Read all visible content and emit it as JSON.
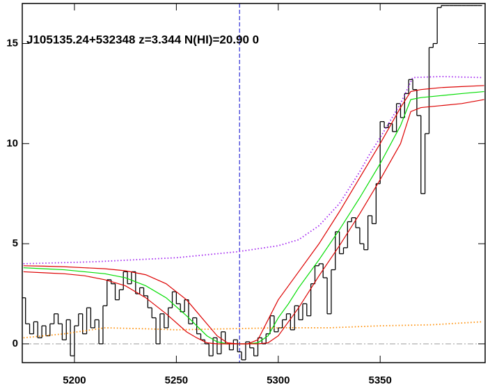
{
  "chart_data": {
    "type": "line",
    "title": "J105135.24+532348 z=3.344 N(HI)=20.90 0",
    "xlim": [
      5174.4,
      5401.5
    ],
    "ylim": [
      -0.94,
      17.0
    ],
    "xticks": [
      5200,
      5250,
      5300,
      5350
    ],
    "yticks": [
      0,
      5,
      10,
      15
    ],
    "vline": 5281,
    "vline_color": "#0000cc",
    "hline": 0,
    "hline_color": "#999999",
    "series": [
      {
        "style": "step",
        "color": "#000000",
        "x": [
          5175,
          5177,
          5179,
          5181,
          5183,
          5185,
          5187,
          5189,
          5191,
          5193,
          5195,
          5197,
          5199,
          5201,
          5203,
          5205,
          5207,
          5209,
          5211,
          5213,
          5215,
          5217,
          5219,
          5221,
          5223,
          5225,
          5227,
          5229,
          5231,
          5233,
          5235,
          5237,
          5239,
          5241,
          5243,
          5245,
          5247,
          5249,
          5251,
          5253,
          5255,
          5257,
          5259,
          5261,
          5263,
          5265,
          5267,
          5269,
          5271,
          5273,
          5275,
          5277,
          5279,
          5281,
          5283,
          5285,
          5287,
          5289,
          5291,
          5293,
          5295,
          5297,
          5299,
          5301,
          5303,
          5305,
          5307,
          5309,
          5311,
          5313,
          5315,
          5317,
          5319,
          5321,
          5323,
          5325,
          5327,
          5329,
          5331,
          5333,
          5335,
          5337,
          5339,
          5341,
          5343,
          5345,
          5347,
          5349,
          5351,
          5353,
          5355,
          5357,
          5359,
          5361,
          5363,
          5365,
          5367,
          5369,
          5371,
          5373,
          5375,
          5377,
          5379,
          5381,
          5383,
          5385,
          5387,
          5389,
          5391,
          5393,
          5395,
          5397,
          5399
        ],
        "values": [
          2.3,
          1.0,
          0.5,
          1.1,
          0.3,
          0.9,
          0.4,
          1.0,
          1.5,
          1.0,
          0.2,
          1.2,
          -0.6,
          0.9,
          1.5,
          0.5,
          1.8,
          0.8,
          1.2,
          0.0,
          1.9,
          3.2,
          3.0,
          2.2,
          2.7,
          3.6,
          3.0,
          3.6,
          2.5,
          2.8,
          2.4,
          1.8,
          1.3,
          0.0,
          1.5,
          0.8,
          1.8,
          2.6,
          2.0,
          1.6,
          2.2,
          1.0,
          1.3,
          0.5,
          0.2,
          0.0,
          -0.6,
          0.3,
          -0.5,
          0.6,
          0.0,
          -0.3,
          0.2,
          -0.4,
          -0.8,
          0.1,
          -0.2,
          -0.6,
          0.3,
          0.0,
          0.5,
          1.4,
          0.6,
          0.8,
          1.2,
          1.5,
          0.7,
          1.9,
          1.2,
          2.0,
          1.4,
          3.0,
          3.9,
          4.0,
          3.3,
          1.5,
          3.7,
          5.6,
          4.5,
          4.8,
          6.1,
          6.3,
          5.8,
          5.0,
          4.7,
          6.4,
          6.0,
          8.0,
          11.1,
          10.8,
          11.0,
          10.6,
          12.0,
          11.3,
          12.5,
          13.2,
          12.7,
          11.4,
          7.5,
          10.5,
          14.8,
          15.0,
          16.8,
          16.9,
          16.9,
          16.9,
          16.9,
          16.9,
          16.9,
          16.9,
          16.9,
          16.9,
          16.9
        ]
      },
      {
        "style": "dotted",
        "color": "#a020f0",
        "x": [
          5175,
          5210,
          5250,
          5280,
          5300,
          5310,
          5320,
          5330,
          5340,
          5345,
          5350,
          5360,
          5366,
          5380,
          5400
        ],
        "values": [
          4.0,
          4.1,
          4.3,
          4.6,
          4.9,
          5.2,
          5.9,
          7.0,
          8.6,
          9.5,
          10.3,
          12.0,
          13.3,
          13.35,
          13.3
        ]
      },
      {
        "style": "dotted",
        "color": "#ff8c00",
        "x": [
          5175,
          5195,
          5215,
          5235,
          5250,
          5275,
          5300,
          5325,
          5350,
          5375,
          5400
        ],
        "values": [
          0.3,
          0.5,
          0.8,
          0.75,
          0.7,
          0.75,
          0.8,
          0.8,
          0.9,
          0.95,
          1.1
        ]
      },
      {
        "style": "solid",
        "color": "#00dd00",
        "x": [
          5175,
          5185,
          5195,
          5205,
          5215,
          5225,
          5235,
          5245,
          5255,
          5260,
          5265,
          5270,
          5275,
          5280,
          5285,
          5290,
          5295,
          5300,
          5305,
          5310,
          5320,
          5330,
          5340,
          5350,
          5360,
          5365,
          5370,
          5380,
          5390,
          5401
        ],
        "values": [
          3.8,
          3.75,
          3.7,
          3.6,
          3.5,
          3.3,
          2.9,
          2.3,
          1.4,
          0.9,
          0.4,
          0.1,
          0,
          0,
          0,
          0.05,
          0.4,
          1.3,
          2.0,
          2.8,
          4.2,
          5.7,
          7.3,
          9.0,
          10.9,
          12.2,
          12.3,
          12.4,
          12.5,
          12.6
        ]
      },
      {
        "style": "solid",
        "color": "#dd0000",
        "x": [
          5175,
          5185,
          5195,
          5205,
          5215,
          5225,
          5235,
          5245,
          5255,
          5260,
          5265,
          5270,
          5275,
          5280,
          5285,
          5290,
          5295,
          5300,
          5305,
          5310,
          5320,
          5330,
          5340,
          5350,
          5360,
          5365,
          5370,
          5380,
          5390,
          5401
        ],
        "values": [
          3.9,
          3.88,
          3.85,
          3.8,
          3.75,
          3.65,
          3.45,
          3.0,
          2.2,
          1.6,
          1.0,
          0.4,
          0.05,
          0,
          0,
          0.2,
          1.2,
          2.2,
          2.9,
          3.6,
          5.0,
          6.6,
          8.3,
          10.0,
          11.8,
          12.6,
          12.7,
          12.8,
          12.85,
          12.9
        ]
      },
      {
        "style": "solid",
        "color": "#dd0000",
        "x": [
          5175,
          5185,
          5195,
          5205,
          5215,
          5225,
          5235,
          5245,
          5255,
          5260,
          5265,
          5270,
          5275,
          5280,
          5285,
          5290,
          5295,
          5300,
          5305,
          5310,
          5320,
          5330,
          5340,
          5350,
          5360,
          5365,
          5370,
          5380,
          5390,
          5401
        ],
        "values": [
          3.6,
          3.55,
          3.5,
          3.4,
          3.2,
          2.9,
          2.3,
          1.5,
          0.6,
          0.3,
          0.05,
          0,
          0,
          0,
          0,
          0,
          0.05,
          0.4,
          1.1,
          1.8,
          3.4,
          4.9,
          6.5,
          8.2,
          10.0,
          11.6,
          11.8,
          11.9,
          12.0,
          12.2
        ]
      }
    ]
  }
}
